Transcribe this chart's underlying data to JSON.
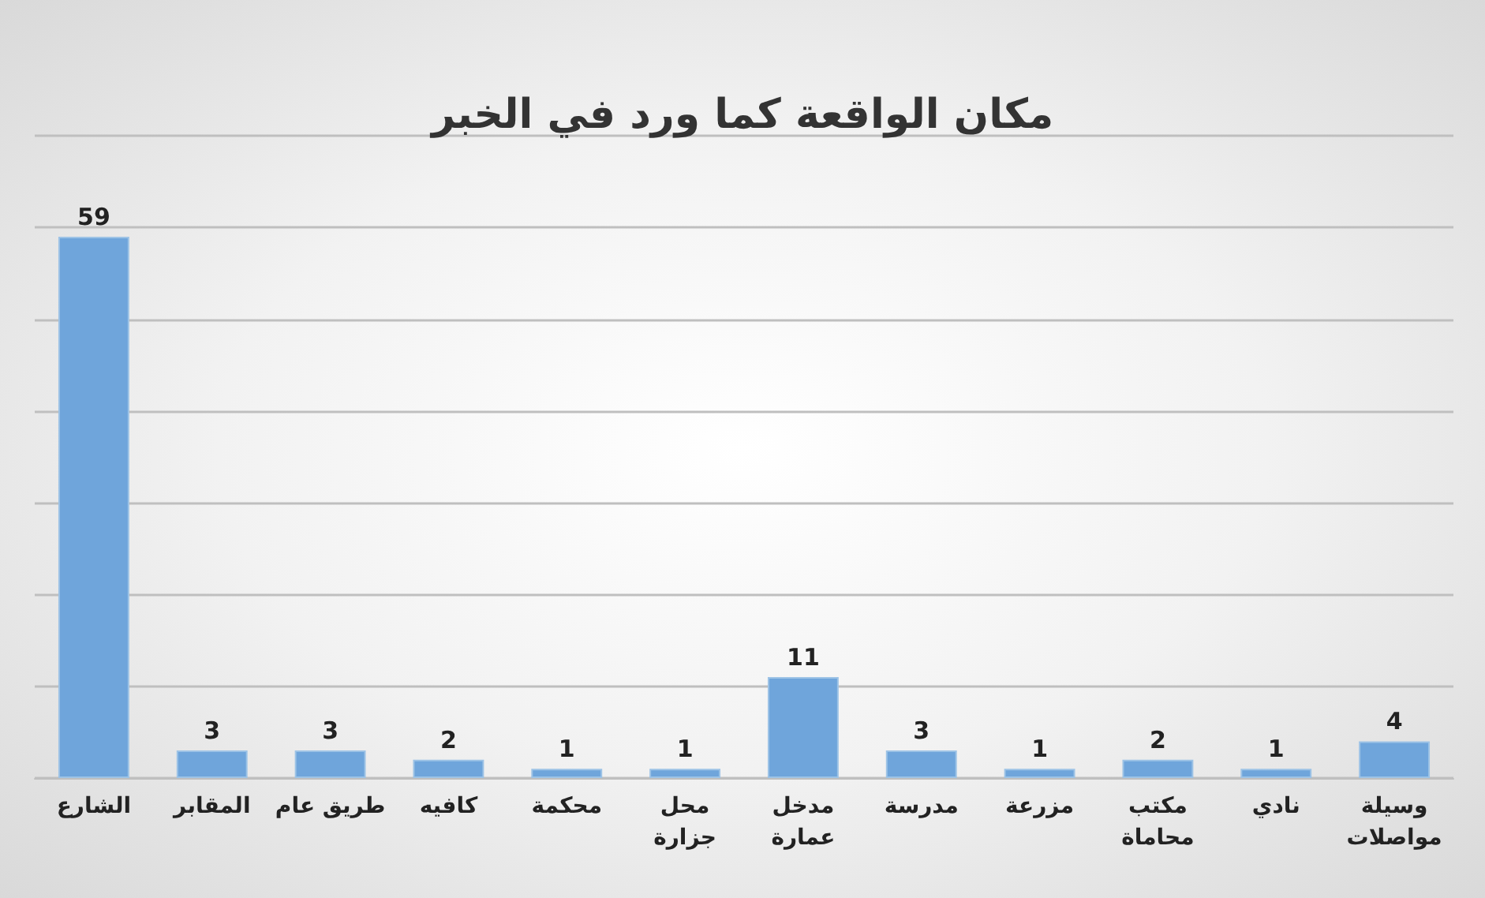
{
  "chart_data": {
    "type": "bar",
    "title": "مكان الواقعة كما ورد في الخبر",
    "categories": [
      "الشارع",
      "المقابر",
      "طريق عام",
      "كافيه",
      "محكمة",
      "محل جزارة",
      "مدخل عمارة",
      "مدرسة",
      "مزرعة",
      "مكتب محاماة",
      "نادي",
      "وسيلة مواصلات"
    ],
    "values": [
      59,
      3,
      3,
      2,
      1,
      1,
      11,
      3,
      1,
      2,
      1,
      4
    ],
    "color": "#6fa5db",
    "ylim": [
      0,
      70
    ],
    "yticks": [
      {
        "value": 0,
        "label": null
      },
      {
        "value": 10,
        "label": null
      },
      {
        "value": 20,
        "label": null
      },
      {
        "value": 30,
        "label": null
      },
      {
        "value": 40,
        "label": null
      },
      {
        "value": 50,
        "label": null
      },
      {
        "value": 60,
        "label": null
      },
      {
        "value": 70,
        "label": null
      }
    ],
    "tick_labels": "x",
    "grid": "y",
    "data_labels": true
  }
}
